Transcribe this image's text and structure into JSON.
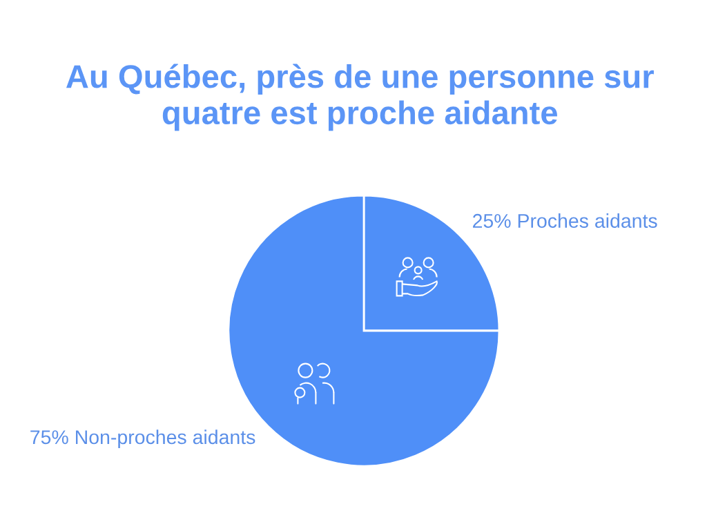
{
  "chart_data": {
    "type": "pie",
    "title": "Au Québec, près de une personne sur quatre est proche aidante",
    "categories": [
      "Proches aidants",
      "Non-proches aidants"
    ],
    "values": [
      25,
      75
    ],
    "value_labels": [
      "25%",
      "75%"
    ],
    "colors": [
      "#4f8ff8",
      "#4f8ff8"
    ]
  }
}
